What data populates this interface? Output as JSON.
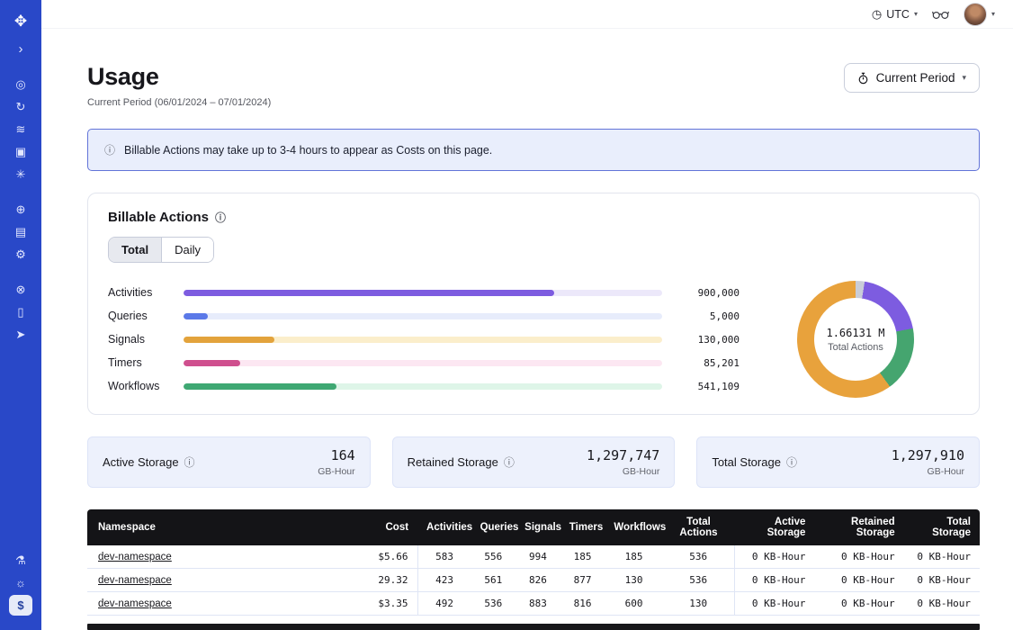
{
  "icons": {
    "chevron_down": "▾",
    "info": "ⓘ",
    "clock": "◷"
  },
  "sidebar": {
    "items": [
      {
        "id": "logo",
        "glyph": "✥"
      },
      {
        "id": "collapse",
        "glyph": "›"
      },
      {
        "id": "namespaces",
        "glyph": "◎"
      },
      {
        "id": "history",
        "glyph": "↻"
      },
      {
        "id": "stack",
        "glyph": "≋"
      },
      {
        "id": "deployments",
        "glyph": "▣"
      },
      {
        "id": "nexus",
        "glyph": "✳"
      },
      {
        "id": "cloud",
        "glyph": "⊕"
      },
      {
        "id": "billing",
        "glyph": "▤"
      },
      {
        "id": "settings",
        "glyph": "⚙"
      },
      {
        "id": "support",
        "glyph": "⊗"
      },
      {
        "id": "docs",
        "glyph": "▯"
      },
      {
        "id": "getting-started",
        "glyph": "➤"
      },
      {
        "id": "labs",
        "glyph": "⚗"
      },
      {
        "id": "theme",
        "glyph": "☼"
      },
      {
        "id": "usage",
        "glyph": "$",
        "active": true
      }
    ]
  },
  "topbar": {
    "timezone": "UTC"
  },
  "page": {
    "title": "Usage",
    "subtitle": "Current Period (06/01/2024 – 07/01/2024)",
    "period_button_label": "Current Period"
  },
  "banner": {
    "text": "Billable Actions may take up to 3-4 hours to appear as Costs on this page."
  },
  "billable_actions": {
    "title": "Billable Actions",
    "tabs": [
      {
        "label": "Total",
        "selected": true
      },
      {
        "label": "Daily",
        "selected": false
      }
    ],
    "chart_data": {
      "type": "bar",
      "categories": [
        "Activities",
        "Queries",
        "Signals",
        "Timers",
        "Workflows"
      ],
      "values": [
        900000,
        5000,
        130000,
        85201,
        541109
      ],
      "value_labels": [
        "900,000",
        "5,000",
        "130,000",
        "85,201",
        "541,109"
      ],
      "total_value": 1661310,
      "total_display": "1.66131 M",
      "total_label": "Total Actions"
    },
    "bars": [
      {
        "label": "Activities",
        "display": "900,000",
        "pct": 77.5,
        "fill": "#7d5ce0",
        "track": "#ece8fa"
      },
      {
        "label": "Queries",
        "display": "5,000",
        "pct": 5,
        "fill": "#5b79e8",
        "track": "#e7ecfb"
      },
      {
        "label": "Signals",
        "display": "130,000",
        "pct": 19,
        "fill": "#e3a33c",
        "track": "#fbeecb"
      },
      {
        "label": "Timers",
        "display": "85,201",
        "pct": 11.8,
        "fill": "#cf4f8e",
        "track": "#fce7f2"
      },
      {
        "label": "Workflows",
        "display": "541,109",
        "pct": 32,
        "fill": "#3fa873",
        "track": "#def5e8"
      }
    ],
    "donut": {
      "center_value": "1.66131 M",
      "center_label": "Total Actions",
      "stops": [
        {
          "color": "#c9cdd8",
          "from": 0,
          "to": 2.5
        },
        {
          "color": "#7d5ce0",
          "from": 2.5,
          "to": 22
        },
        {
          "color": "#45a56f",
          "from": 22,
          "to": 40
        },
        {
          "color": "#e8a23c",
          "from": 40,
          "to": 100
        }
      ]
    }
  },
  "storage_cards": [
    {
      "label": "Active Storage",
      "value": "164",
      "unit": "GB-Hour"
    },
    {
      "label": "Retained Storage",
      "value": "1,297,747",
      "unit": "GB-Hour"
    },
    {
      "label": "Total Storage",
      "value": "1,297,910",
      "unit": "GB-Hour"
    }
  ],
  "table": {
    "columns": [
      {
        "key": "namespace",
        "label": "Namespace",
        "align": "left",
        "width": "30%"
      },
      {
        "key": "cost",
        "label": "Cost",
        "align": "right",
        "width": "7%"
      },
      {
        "key": "activities",
        "label": "Activities",
        "align": "center",
        "width": "6%",
        "sep": true
      },
      {
        "key": "queries",
        "label": "Queries",
        "align": "center",
        "width": "5%"
      },
      {
        "key": "signals",
        "label": "Signals",
        "align": "center",
        "width": "5%"
      },
      {
        "key": "timers",
        "label": "Timers",
        "align": "center",
        "width": "5%"
      },
      {
        "key": "workflows",
        "label": "Workflows",
        "align": "center",
        "width": "6.5%"
      },
      {
        "key": "total_actions",
        "label": "Total Actions",
        "align": "center",
        "width": "8%"
      },
      {
        "key": "active_storage",
        "label": "Active Storage",
        "align": "right",
        "width": "9%",
        "sep": true
      },
      {
        "key": "retained_storage",
        "label": "Retained Storage",
        "align": "right",
        "width": "10%"
      },
      {
        "key": "total_storage",
        "label": "Total Storage",
        "align": "right",
        "width": "8.5%"
      }
    ],
    "rows": [
      {
        "namespace": "dev-namespace",
        "cost": "$5.66",
        "activities": "583",
        "queries": "556",
        "signals": "994",
        "timers": "185",
        "workflows": "185",
        "total_actions": "536",
        "active_storage": "0 KB-Hour",
        "retained_storage": "0 KB-Hour",
        "total_storage": "0 KB-Hour"
      },
      {
        "namespace": "dev-namespace",
        "cost": "29.32",
        "activities": "423",
        "queries": "561",
        "signals": "826",
        "timers": "877",
        "workflows": "130",
        "total_actions": "536",
        "active_storage": "0 KB-Hour",
        "retained_storage": "0 KB-Hour",
        "total_storage": "0 KB-Hour"
      },
      {
        "namespace": "dev-namespace",
        "cost": "$3.35",
        "activities": "492",
        "queries": "536",
        "signals": "883",
        "timers": "816",
        "workflows": "600",
        "total_actions": "130",
        "active_storage": "0 KB-Hour",
        "retained_storage": "0 KB-Hour",
        "total_storage": "0 KB-Hour"
      }
    ]
  }
}
